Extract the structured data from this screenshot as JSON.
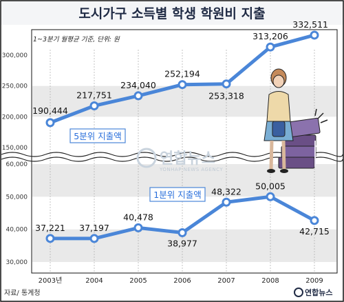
{
  "title": "도시가구 소득별 학생 학원비 지출",
  "note": "1~3분기 월평균 기준, 단위: 원",
  "source": "자료/ 통계청",
  "watermark": {
    "main": "연합뉴스",
    "sub": "YONHAP NEWS AGENCY"
  },
  "logo": "연합뉴스",
  "colors": {
    "line": "#4a86d8",
    "marker_fill": "#ffffff",
    "band": "#e9e9e9",
    "frame": "#111111",
    "series_label": "#2a6fdb"
  },
  "chart_data": [
    {
      "type": "line",
      "categories": [
        "2003년",
        "2004",
        "2005",
        "2006",
        "2007",
        "2008",
        "2009"
      ],
      "series": [
        {
          "name": "5분위 지출액",
          "values": [
            190444,
            217751,
            234040,
            252194,
            253318,
            313206,
            332511
          ],
          "labels": [
            "190,444",
            "217,751",
            "234,040",
            "252,194",
            "253,318",
            "313,206",
            "332,511"
          ]
        }
      ],
      "yticks": [
        "300,000",
        "250,000",
        "200,000",
        "150,000"
      ],
      "ytick_values": [
        300000,
        250000,
        200000,
        150000
      ],
      "ylim": [
        140000,
        340000
      ],
      "grid": "alternating bands"
    },
    {
      "type": "line",
      "categories": [
        "2003년",
        "2004",
        "2005",
        "2006",
        "2007",
        "2008",
        "2009"
      ],
      "series": [
        {
          "name": "1분위 지출액",
          "values": [
            37221,
            37197,
            40478,
            38977,
            48322,
            50005,
            42715
          ],
          "labels": [
            "37,221",
            "37,197",
            "40,478",
            "38,977",
            "48,322",
            "50,005",
            "42,715"
          ]
        }
      ],
      "yticks": [
        "60,000",
        "50,000",
        "40,000",
        "30,000"
      ],
      "ytick_values": [
        60000,
        50000,
        40000,
        30000
      ],
      "ylim": [
        28000,
        62000
      ],
      "grid": "alternating bands"
    }
  ]
}
